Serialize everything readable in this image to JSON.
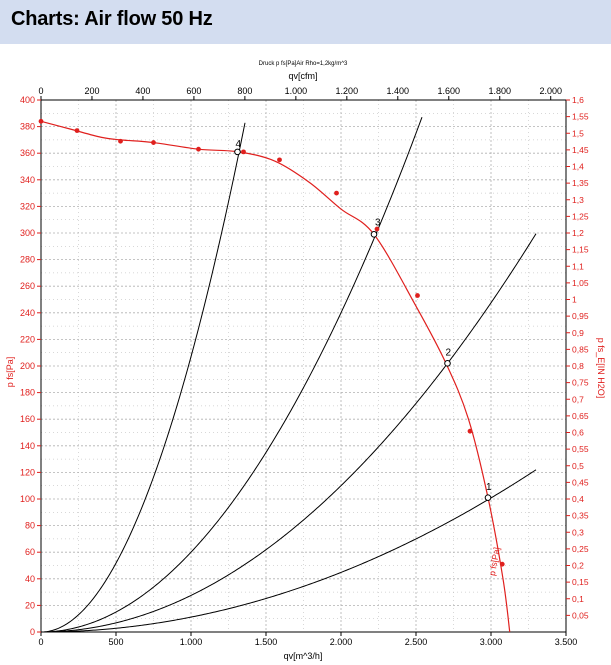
{
  "header": {
    "title": "Charts: Air flow 50 Hz"
  },
  "colors": {
    "header_bg": "#d3ddf0",
    "fan_curve": "#e0201e",
    "system_curve": "#000000",
    "grid": "#b0b0b0"
  },
  "chart_data": {
    "type": "line",
    "title": "Druck p fs[Pa]Air Rho=1,2kg/m^3",
    "xlabel": "qv[m^3/h]",
    "x2label": "qv[cfm]",
    "ylabel": "p fs[Pa]",
    "y2label": "p fs_E[IN H2O]",
    "xlim": [
      0,
      3500
    ],
    "ylim": [
      0,
      400
    ],
    "x2lim": [
      0,
      2060
    ],
    "y2lim": [
      0,
      1.6
    ],
    "x_ticks": [
      0,
      500,
      1000,
      1500,
      2000,
      2500,
      3000,
      3500
    ],
    "x_tick_labels": [
      "0",
      "500",
      "1.000",
      "1.500",
      "2.000",
      "2.500",
      "3.000",
      "3.500"
    ],
    "x2_ticks": [
      0,
      200,
      400,
      600,
      800,
      1000,
      1200,
      1400,
      1600,
      1800,
      2000
    ],
    "x2_tick_labels": [
      "0",
      "200",
      "400",
      "600",
      "800",
      "1.000",
      "1.200",
      "1.400",
      "1.600",
      "1.800",
      "2.000"
    ],
    "y_ticks": [
      0,
      20,
      40,
      60,
      80,
      100,
      120,
      140,
      160,
      180,
      200,
      220,
      240,
      260,
      280,
      300,
      320,
      340,
      360,
      380,
      400
    ],
    "y_tick_labels": [
      "0",
      "20",
      "40",
      "60",
      "80",
      "100",
      "120",
      "140",
      "160",
      "180",
      "200",
      "220",
      "240",
      "260",
      "280",
      "300",
      "320",
      "340",
      "360",
      "380",
      "400"
    ],
    "y2_ticks": [
      0.05,
      0.1,
      0.15,
      0.2,
      0.25,
      0.3,
      0.35,
      0.4,
      0.45,
      0.5,
      0.55,
      0.6,
      0.65,
      0.7,
      0.75,
      0.8,
      0.85,
      0.9,
      0.95,
      1.0,
      1.05,
      1.1,
      1.15,
      1.2,
      1.25,
      1.3,
      1.35,
      1.4,
      1.45,
      1.5,
      1.55,
      1.6
    ],
    "y2_tick_labels": [
      "0,05",
      "0,1",
      "0,15",
      "0,2",
      "0,25",
      "0,3",
      "0,35",
      "0,4",
      "0,45",
      "0,5",
      "0,55",
      "0,6",
      "0,65",
      "0,7",
      "0,75",
      "0,8",
      "0,85",
      "0,9",
      "0,95",
      "1",
      "1,05",
      "1,1",
      "1,15",
      "1,2",
      "1,25",
      "1,3",
      "1,35",
      "1,4",
      "1,45",
      "1,5",
      "1,55",
      "1,6"
    ],
    "grid": true,
    "fan_curve": {
      "name": "p fs[Pa]",
      "x": [
        0,
        200,
        400,
        530,
        750,
        1050,
        1320,
        1560,
        1790,
        2000,
        2220,
        2500,
        2700,
        2850,
        2980,
        3080,
        3125
      ],
      "y": [
        384,
        378,
        372,
        370,
        368,
        363,
        361,
        354,
        338,
        318,
        299,
        245,
        202,
        160,
        101,
        40,
        0
      ]
    },
    "fan_curve_markers": {
      "x": [
        0,
        240,
        530,
        750,
        1050,
        1350,
        1590,
        1970,
        2240,
        2510,
        2860,
        3075
      ],
      "y": [
        384,
        377,
        369,
        368,
        363,
        361,
        355,
        330,
        303,
        253,
        151,
        51
      ]
    },
    "system_curves": [
      {
        "name": "4",
        "k": 0.000207,
        "x_end": 1360,
        "label_x": 1310,
        "label_y": 364
      },
      {
        "name": "3",
        "k": 6e-05,
        "x_end": 2540,
        "label_x": 2240,
        "label_y": 305
      },
      {
        "name": "2",
        "k": 2.75e-05,
        "x_end": 3300,
        "label_x": 2710,
        "label_y": 207
      },
      {
        "name": "1",
        "k": 1.12e-05,
        "x_end": 3300,
        "label_x": 2980,
        "label_y": 106
      }
    ],
    "operating_points": [
      {
        "label": "1",
        "x": 2980,
        "y": 101
      },
      {
        "label": "2",
        "x": 2710,
        "y": 202
      },
      {
        "label": "3",
        "x": 2220,
        "y": 299
      },
      {
        "label": "4",
        "x": 1310,
        "y": 361
      }
    ]
  }
}
